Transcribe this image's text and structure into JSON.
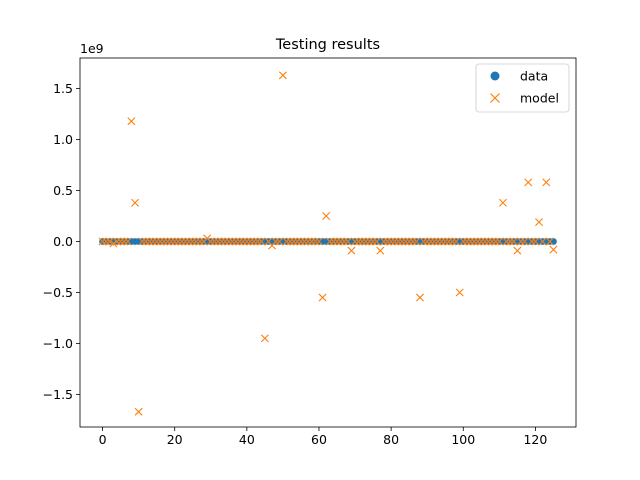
{
  "chart_data": {
    "type": "scatter",
    "title": "Testing results",
    "xlabel": "",
    "ylabel": "",
    "y_scale_label": "1e9",
    "xlim": [
      -6.25,
      131.25
    ],
    "ylim": [
      -1.82,
      1.8
    ],
    "xticks": [
      0,
      20,
      40,
      60,
      80,
      100,
      120
    ],
    "xtick_labels": [
      "0",
      "20",
      "40",
      "60",
      "80",
      "100",
      "120"
    ],
    "yticks": [
      -1.5,
      -1.0,
      -0.5,
      0.0,
      0.5,
      1.0,
      1.5
    ],
    "ytick_labels": [
      "−1.5",
      "−1.0",
      "−0.5",
      "0.0",
      "0.5",
      "1.0",
      "1.5"
    ],
    "legend_position": "top-right",
    "series": [
      {
        "name": "data",
        "marker": "circle",
        "color": "#1f77b4",
        "x_start": 0,
        "x_end": 125,
        "value": 0.0
      },
      {
        "name": "model",
        "marker": "x",
        "color": "#ff7f0e",
        "outliers": [
          {
            "x": 3,
            "y": -0.02
          },
          {
            "x": 8,
            "y": 1.18
          },
          {
            "x": 9,
            "y": 0.38
          },
          {
            "x": 10,
            "y": -1.67
          },
          {
            "x": 29,
            "y": 0.03
          },
          {
            "x": 45,
            "y": -0.95
          },
          {
            "x": 47,
            "y": -0.04
          },
          {
            "x": 50,
            "y": 1.63
          },
          {
            "x": 61,
            "y": -0.55
          },
          {
            "x": 62,
            "y": 0.25
          },
          {
            "x": 69,
            "y": -0.09
          },
          {
            "x": 77,
            "y": -0.09
          },
          {
            "x": 88,
            "y": -0.55
          },
          {
            "x": 99,
            "y": -0.5
          },
          {
            "x": 111,
            "y": 0.38
          },
          {
            "x": 115,
            "y": -0.09
          },
          {
            "x": 118,
            "y": 0.58
          },
          {
            "x": 121,
            "y": 0.19
          },
          {
            "x": 123,
            "y": 0.58
          },
          {
            "x": 125,
            "y": -0.08
          }
        ]
      }
    ]
  }
}
